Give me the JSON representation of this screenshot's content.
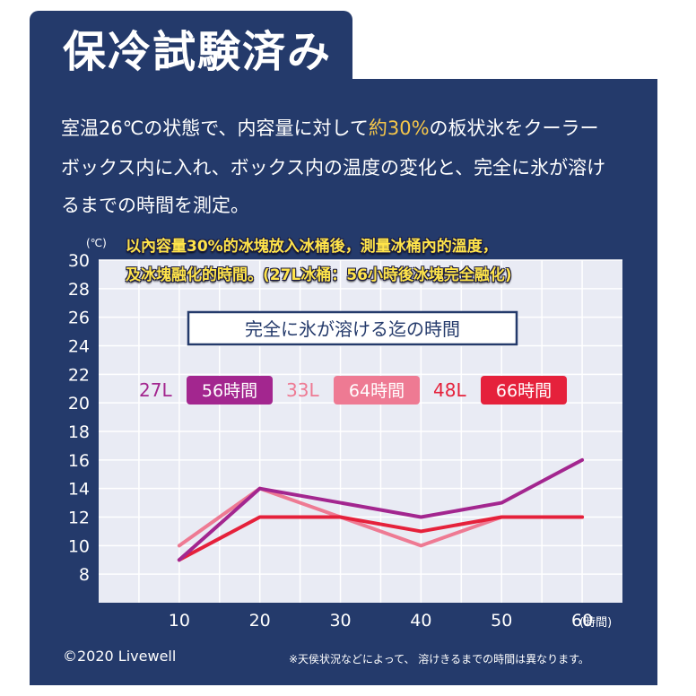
{
  "header": {
    "title": "保冷試験済み"
  },
  "description": {
    "line1_pre": "室温26℃の状態で、内容量に対して",
    "line1_highlight": "約30%",
    "line1_post": "の板状氷をクーラー",
    "line2": "ボックス内に入れ、ボックス内の温度の変化と、完全に氷が溶け",
    "line3": "るまでの時間を測定。"
  },
  "caption": {
    "line1": "以內容量30%的冰塊放入冰桶後，測量冰桶內的溫度，",
    "line2": "及冰塊融化的時間。(27L冰桶：56小時後冰塊完全融化)"
  },
  "chart_data": {
    "type": "line",
    "ylabel": "(℃)",
    "xlabel": "(時間)",
    "x": [
      10,
      20,
      30,
      40,
      50,
      60
    ],
    "xlim": [
      0,
      65
    ],
    "ylim": [
      6,
      30
    ],
    "x_ticks": [
      "10",
      "20",
      "30",
      "40",
      "50",
      "60"
    ],
    "y_ticks": [
      "8",
      "10",
      "12",
      "14",
      "16",
      "18",
      "20",
      "22",
      "24",
      "26",
      "28",
      "30"
    ],
    "grid": true,
    "inset_title": "完全に氷が溶ける迄の時間",
    "series": [
      {
        "name": "27L",
        "badge": "56時間",
        "color": "#a3268f",
        "x": [
          10,
          20,
          30,
          40,
          50,
          60
        ],
        "values": [
          9,
          14,
          13,
          12,
          13,
          16
        ]
      },
      {
        "name": "33L",
        "badge": "64時間",
        "color": "#ee7a93",
        "x": [
          10,
          20,
          30,
          40,
          50,
          60
        ],
        "values": [
          10,
          14,
          12,
          10,
          12,
          12
        ]
      },
      {
        "name": "48L",
        "badge": "66時間",
        "color": "#e5213b",
        "x": [
          10,
          20,
          30,
          40,
          50,
          60
        ],
        "values": [
          9,
          12,
          12,
          11,
          12,
          12
        ]
      }
    ]
  },
  "footer": {
    "copyright": "©2020 Livewell",
    "note": "※天侯状況などによって、 溶けきるまでの時間は異なります。"
  }
}
